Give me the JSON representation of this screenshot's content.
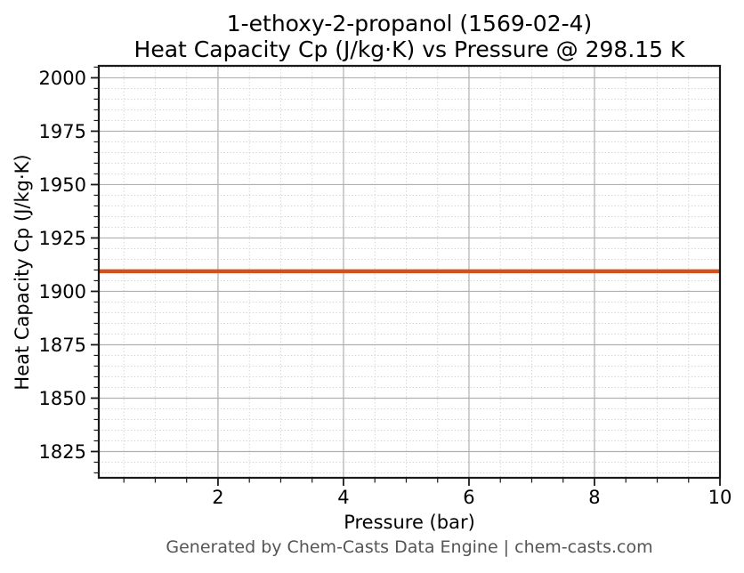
{
  "title": {
    "line1": "1-ethoxy-2-propanol (1569-02-4)",
    "line2": "Heat Capacity Cp (J/kg·K) vs Pressure @ 298.15 K"
  },
  "footer": "Generated by Chem-Casts Data Engine | chem-casts.com",
  "chart_data": {
    "type": "line",
    "title": "1-ethoxy-2-propanol (1569-02-4)\nHeat Capacity Cp (J/kg·K) vs Pressure @ 298.15 K",
    "xlabel": "Pressure (bar)",
    "ylabel": "Heat Capacity Cp (J/kg·K)",
    "xlim": [
      0.1,
      10
    ],
    "ylim": [
      1812.7,
      2005.6
    ],
    "x_major_ticks": [
      2,
      4,
      6,
      8,
      10
    ],
    "x_minor_step": 0.5,
    "y_major_ticks": [
      1825,
      1850,
      1875,
      1900,
      1925,
      1950,
      1975,
      2000
    ],
    "y_minor_step": 5,
    "grid": "major-solid-minor-dotted",
    "legend": "none",
    "series": [
      {
        "name": "Heat Capacity Cp",
        "x": [
          0.1,
          10
        ],
        "y": [
          1909.4,
          1909.4
        ],
        "color": "#d0521f",
        "linewidth": 4.5,
        "description": "constant Cp of 1909.4 J/kg·K across 0.1–10 bar at 298.15 K"
      }
    ],
    "colors": {
      "line": "#d0521f",
      "major_grid": "#b0b0b0",
      "minor_grid": "#d2d2d2",
      "spine": "#1a1a1a",
      "tick_label": "#000000",
      "footer_text": "#555555"
    }
  }
}
